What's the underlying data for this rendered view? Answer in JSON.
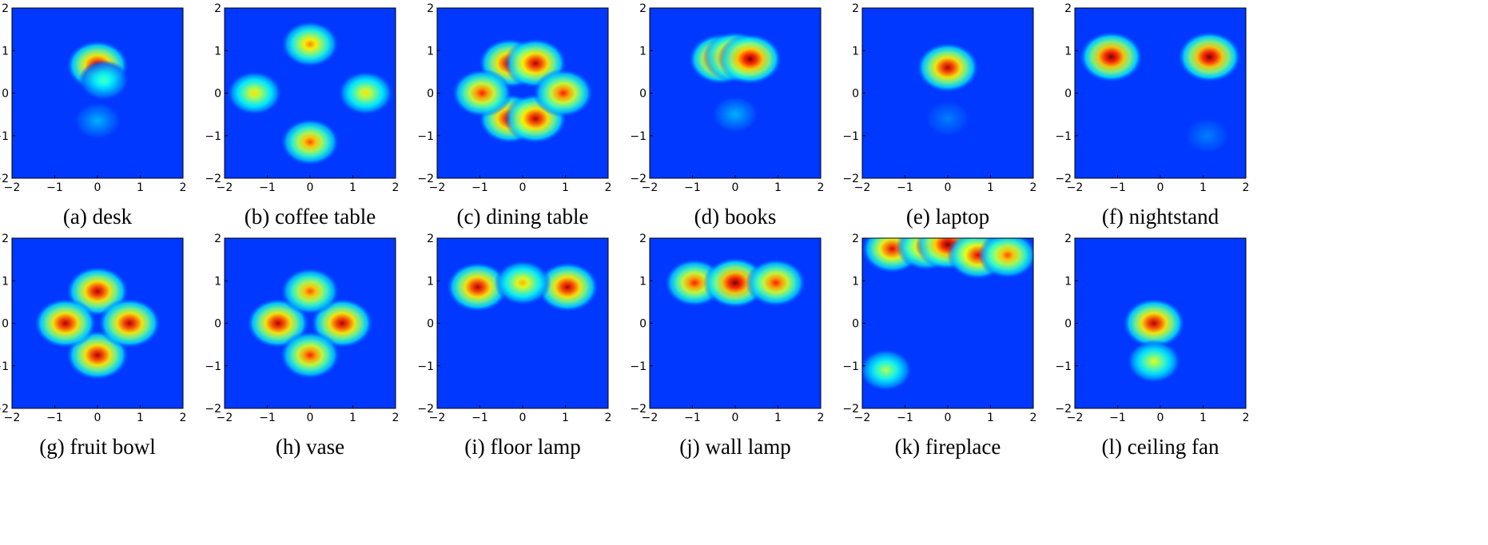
{
  "chart_data": [
    {
      "type": "heatmap",
      "caption": "(a) desk",
      "xlim": [
        -2,
        2
      ],
      "ylim": [
        -2,
        2
      ],
      "xticks": [
        "−2",
        "−1",
        "0",
        "1",
        "2"
      ],
      "yticks": [
        "2",
        "1",
        "0",
        "−1",
        "−2"
      ],
      "colormap": "jet",
      "hotspots": [
        {
          "x": 0.0,
          "y": 0.65,
          "value": 0.95
        },
        {
          "x": 0.15,
          "y": 0.3,
          "value": 0.45
        },
        {
          "x": 0.0,
          "y": -0.65,
          "value": 0.3
        }
      ]
    },
    {
      "type": "heatmap",
      "caption": "(b) coffee table",
      "xlim": [
        -2,
        2
      ],
      "ylim": [
        -2,
        2
      ],
      "xticks": [
        "−2",
        "−1",
        "0",
        "1",
        "2"
      ],
      "yticks": [
        "2",
        "1",
        "0",
        "−1",
        "−2"
      ],
      "colormap": "jet",
      "hotspots": [
        {
          "x": 0.0,
          "y": 1.15,
          "value": 0.75
        },
        {
          "x": 0.0,
          "y": -1.15,
          "value": 0.8
        },
        {
          "x": -1.3,
          "y": 0.0,
          "value": 0.65
        },
        {
          "x": 1.3,
          "y": 0.0,
          "value": 0.65
        }
      ]
    },
    {
      "type": "heatmap",
      "caption": "(c) dining table",
      "xlim": [
        -2,
        2
      ],
      "ylim": [
        -2,
        2
      ],
      "xticks": [
        "−2",
        "−1",
        "0",
        "1",
        "2"
      ],
      "yticks": [
        "2",
        "1",
        "0",
        "−1",
        "−2"
      ],
      "colormap": "jet",
      "hotspots": [
        {
          "x": -0.3,
          "y": 0.7,
          "value": 0.95
        },
        {
          "x": 0.3,
          "y": 0.7,
          "value": 0.95
        },
        {
          "x": -0.3,
          "y": -0.6,
          "value": 0.95
        },
        {
          "x": 0.3,
          "y": -0.6,
          "value": 0.95
        },
        {
          "x": -0.95,
          "y": 0.0,
          "value": 0.85
        },
        {
          "x": 0.95,
          "y": 0.0,
          "value": 0.85
        }
      ]
    },
    {
      "type": "heatmap",
      "caption": "(d) books",
      "xlim": [
        -2,
        2
      ],
      "ylim": [
        -2,
        2
      ],
      "xticks": [
        "−2",
        "−1",
        "0",
        "1",
        "2"
      ],
      "yticks": [
        "2",
        "1",
        "0",
        "−1",
        "−2"
      ],
      "colormap": "jet",
      "hotspots": [
        {
          "x": -0.35,
          "y": 0.8,
          "value": 1.0
        },
        {
          "x": 0.0,
          "y": 0.85,
          "value": 1.0
        },
        {
          "x": 0.35,
          "y": 0.8,
          "value": 1.0
        },
        {
          "x": 0.0,
          "y": -0.5,
          "value": 0.3
        }
      ]
    },
    {
      "type": "heatmap",
      "caption": "(e) laptop",
      "xlim": [
        -2,
        2
      ],
      "ylim": [
        -2,
        2
      ],
      "xticks": [
        "−2",
        "−1",
        "0",
        "1",
        "2"
      ],
      "yticks": [
        "2",
        "1",
        "0",
        "−1",
        "−2"
      ],
      "colormap": "jet",
      "hotspots": [
        {
          "x": 0.0,
          "y": 0.6,
          "value": 0.95
        },
        {
          "x": 0.0,
          "y": -0.6,
          "value": 0.25
        }
      ]
    },
    {
      "type": "heatmap",
      "caption": "(f) nightstand",
      "xlim": [
        -2,
        2
      ],
      "ylim": [
        -2,
        2
      ],
      "xticks": [
        "−2",
        "−1",
        "0",
        "1",
        "2"
      ],
      "yticks": [
        "2",
        "1",
        "0",
        "−1",
        "−2"
      ],
      "colormap": "jet",
      "hotspots": [
        {
          "x": -1.15,
          "y": 0.85,
          "value": 1.0
        },
        {
          "x": 1.15,
          "y": 0.85,
          "value": 1.0
        },
        {
          "x": 1.1,
          "y": -1.0,
          "value": 0.25
        }
      ]
    },
    {
      "type": "heatmap",
      "caption": "(g) fruit bowl",
      "xlim": [
        -2,
        2
      ],
      "ylim": [
        -2,
        2
      ],
      "xticks": [
        "−2",
        "−1",
        "0",
        "1",
        "2"
      ],
      "yticks": [
        "2",
        "1",
        "0",
        "−1",
        "−2"
      ],
      "colormap": "jet",
      "hotspots": [
        {
          "x": 0.0,
          "y": 0.75,
          "value": 0.95
        },
        {
          "x": 0.0,
          "y": -0.75,
          "value": 0.95
        },
        {
          "x": -0.75,
          "y": 0.0,
          "value": 0.95
        },
        {
          "x": 0.75,
          "y": 0.0,
          "value": 0.95
        }
      ]
    },
    {
      "type": "heatmap",
      "caption": "(h) vase",
      "xlim": [
        -2,
        2
      ],
      "ylim": [
        -2,
        2
      ],
      "xticks": [
        "−2",
        "−1",
        "0",
        "1",
        "2"
      ],
      "yticks": [
        "2",
        "1",
        "0",
        "−1",
        "−2"
      ],
      "colormap": "jet",
      "hotspots": [
        {
          "x": -0.75,
          "y": 0.0,
          "value": 0.95
        },
        {
          "x": 0.75,
          "y": 0.0,
          "value": 0.95
        },
        {
          "x": 0.0,
          "y": 0.75,
          "value": 0.8
        },
        {
          "x": 0.0,
          "y": -0.75,
          "value": 0.85
        }
      ]
    },
    {
      "type": "heatmap",
      "caption": "(i) floor lamp",
      "xlim": [
        -2,
        2
      ],
      "ylim": [
        -2,
        2
      ],
      "xticks": [
        "−2",
        "−1",
        "0",
        "1",
        "2"
      ],
      "yticks": [
        "2",
        "1",
        "0",
        "−1",
        "−2"
      ],
      "colormap": "jet",
      "hotspots": [
        {
          "x": -1.05,
          "y": 0.85,
          "value": 0.95
        },
        {
          "x": 1.05,
          "y": 0.85,
          "value": 0.95
        },
        {
          "x": 0.0,
          "y": 0.95,
          "value": 0.7
        }
      ]
    },
    {
      "type": "heatmap",
      "caption": "(j) wall lamp",
      "xlim": [
        -2,
        2
      ],
      "ylim": [
        -2,
        2
      ],
      "xticks": [
        "−2",
        "−1",
        "0",
        "1",
        "2"
      ],
      "yticks": [
        "2",
        "1",
        "0",
        "−1",
        "−2"
      ],
      "colormap": "jet",
      "hotspots": [
        {
          "x": -0.95,
          "y": 0.95,
          "value": 0.85
        },
        {
          "x": 0.0,
          "y": 0.95,
          "value": 1.0
        },
        {
          "x": 0.95,
          "y": 0.95,
          "value": 0.85
        }
      ]
    },
    {
      "type": "heatmap",
      "caption": "(k) fireplace",
      "xlim": [
        -2,
        2
      ],
      "ylim": [
        -2,
        2
      ],
      "xticks": [
        "−2",
        "−1",
        "0",
        "1",
        "2"
      ],
      "yticks": [
        "2",
        "1",
        "0",
        "−1",
        "−2"
      ],
      "colormap": "jet",
      "hotspots": [
        {
          "x": -1.3,
          "y": 1.75,
          "value": 0.9
        },
        {
          "x": -0.5,
          "y": 1.8,
          "value": 0.85
        },
        {
          "x": 0.0,
          "y": 1.85,
          "value": 1.0
        },
        {
          "x": 0.7,
          "y": 1.6,
          "value": 0.9
        },
        {
          "x": 1.4,
          "y": 1.6,
          "value": 0.8
        },
        {
          "x": -1.45,
          "y": -1.1,
          "value": 0.55
        }
      ]
    },
    {
      "type": "heatmap",
      "caption": "(l) ceiling fan",
      "xlim": [
        -2,
        2
      ],
      "ylim": [
        -2,
        2
      ],
      "xticks": [
        "−2",
        "−1",
        "0",
        "1",
        "2"
      ],
      "yticks": [
        "2",
        "1",
        "0",
        "−1",
        "−2"
      ],
      "colormap": "jet",
      "hotspots": [
        {
          "x": -0.15,
          "y": 0.0,
          "value": 0.95
        },
        {
          "x": -0.15,
          "y": -0.9,
          "value": 0.6
        }
      ]
    }
  ]
}
